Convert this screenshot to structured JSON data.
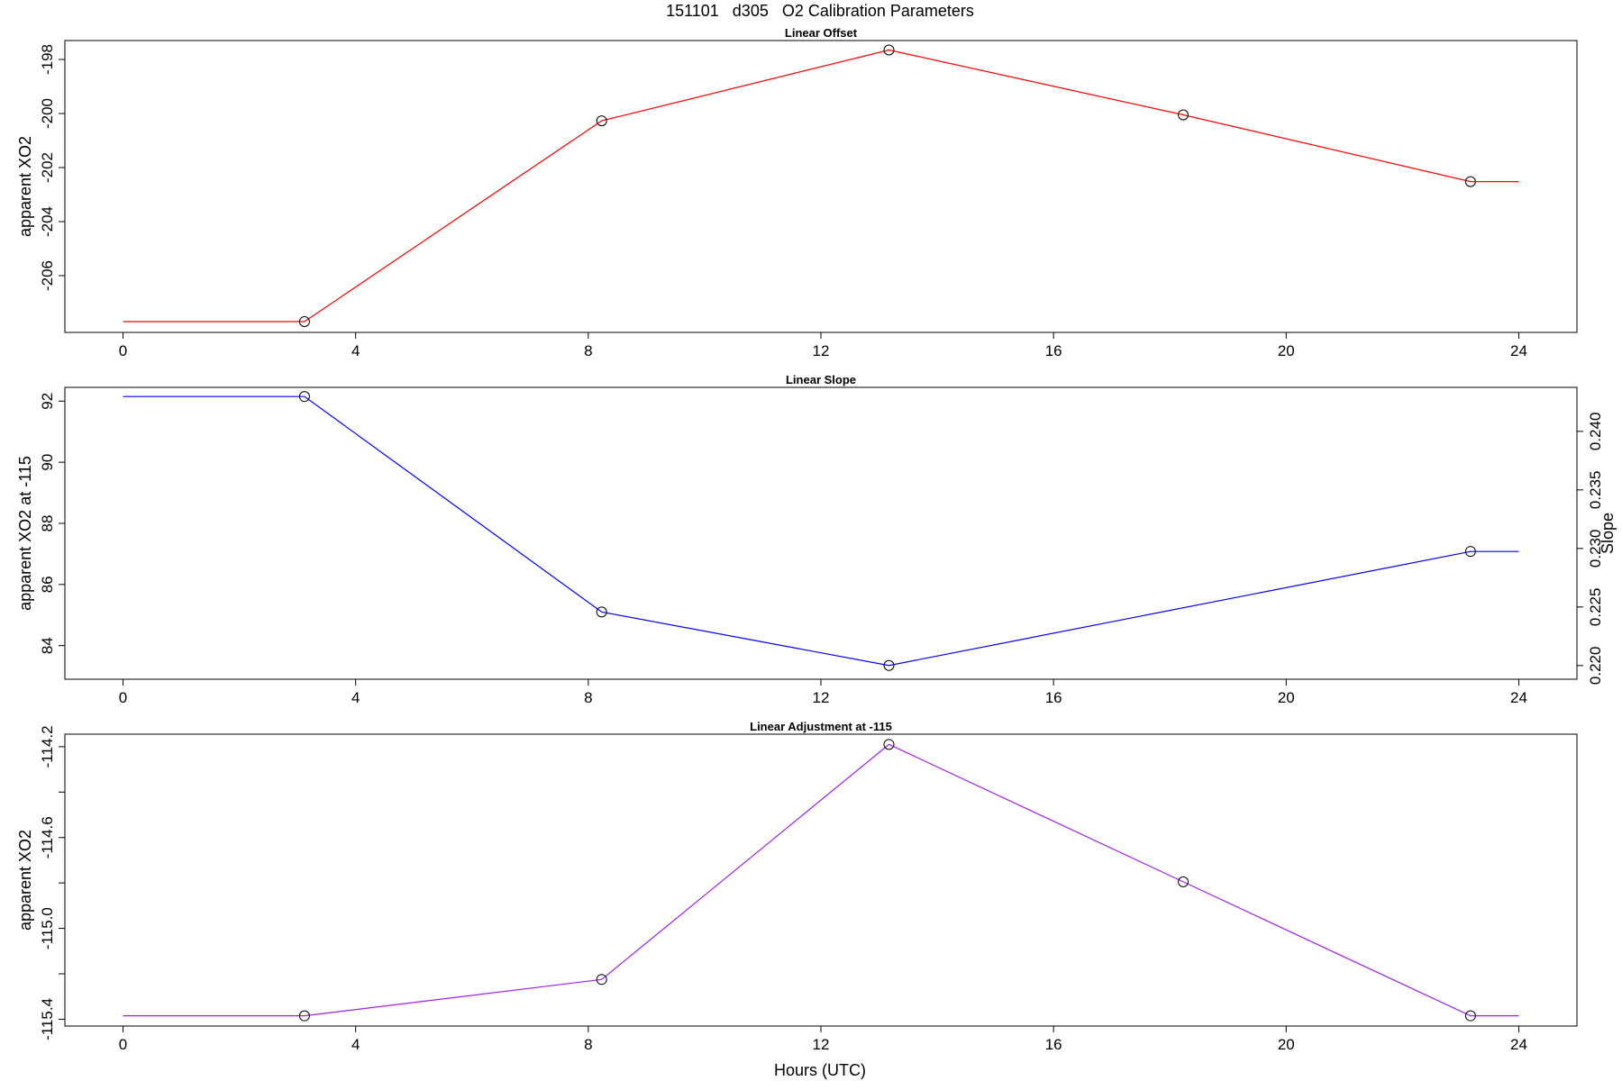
{
  "figure": {
    "title": "151101   d305   O2 Calibration Parameters",
    "xlabel": "Hours (UTC)"
  },
  "chart_data": [
    {
      "type": "line",
      "title": "Linear Offset",
      "xlabel": "",
      "ylabel": "apparent XO2",
      "xlim": [
        -1.0,
        25.0
      ],
      "ylim": [
        -208.1,
        -197.3
      ],
      "xticks": [
        0,
        4,
        8,
        12,
        16,
        20,
        24
      ],
      "xtick_labels": [
        "0",
        "4",
        "8",
        "12",
        "16",
        "20",
        "24"
      ],
      "yticks": [
        -206,
        -204,
        -202,
        -200,
        -198
      ],
      "ytick_labels": [
        "-206",
        "-204",
        "-202",
        "-200",
        "-198"
      ],
      "series": [
        {
          "color": "#ff0000",
          "x": [
            0,
            3.12,
            8.23,
            13.17,
            18.23,
            23.17,
            24
          ],
          "y": [
            -207.7,
            -207.7,
            -200.27,
            -197.65,
            -200.05,
            -202.52,
            -202.52
          ],
          "markers": [
            false,
            true,
            true,
            true,
            true,
            true,
            false
          ]
        }
      ]
    },
    {
      "type": "line",
      "title": "Linear Slope",
      "xlabel": "",
      "ylabel": "apparent XO2 at -115",
      "ylabel_right": "Slope",
      "xlim": [
        -1.0,
        25.0
      ],
      "ylim": [
        82.9,
        92.45
      ],
      "ylim_right": [
        0.21883,
        0.24376
      ],
      "xticks": [
        0,
        4,
        8,
        12,
        16,
        20,
        24
      ],
      "xtick_labels": [
        "0",
        "4",
        "8",
        "12",
        "16",
        "20",
        "24"
      ],
      "yticks": [
        84,
        86,
        88,
        90,
        92
      ],
      "ytick_labels": [
        "84",
        "86",
        "88",
        "90",
        "92"
      ],
      "yticks_right": [
        0.22,
        0.225,
        0.23,
        0.235,
        0.24
      ],
      "ytick_labels_right": [
        "0.220",
        "0.225",
        "0.230",
        "0.235",
        "0.240"
      ],
      "series": [
        {
          "color": "#0000ff",
          "x": [
            0,
            3.12,
            8.23,
            13.17,
            23.17,
            24
          ],
          "y": [
            92.15,
            92.15,
            85.1,
            83.35,
            87.08,
            87.08
          ],
          "markers": [
            false,
            true,
            true,
            true,
            true,
            false
          ]
        }
      ]
    },
    {
      "type": "line",
      "title": "Linear Adjustment at -115",
      "xlabel": "Hours (UTC)",
      "ylabel": "apparent XO2",
      "xlim": [
        -1.0,
        25.0
      ],
      "ylim": [
        -115.43,
        -114.145
      ],
      "xticks": [
        0,
        4,
        8,
        12,
        16,
        20,
        24
      ],
      "xtick_labels": [
        "0",
        "4",
        "8",
        "12",
        "16",
        "20",
        "24"
      ],
      "yticks": [
        -115.4,
        -115.2,
        -115.0,
        -114.8,
        -114.6,
        -114.4,
        -114.2
      ],
      "ytick_labels": [
        "-115.4",
        "",
        "-115.0",
        "",
        "-114.6",
        "",
        "-114.2"
      ],
      "series": [
        {
          "color": "#a020f0",
          "x": [
            0,
            3.12,
            8.23,
            13.17,
            18.23,
            23.17,
            24
          ],
          "y": [
            -115.385,
            -115.385,
            -115.225,
            -114.19,
            -114.795,
            -115.385,
            -115.385
          ],
          "markers": [
            false,
            true,
            true,
            true,
            true,
            true,
            false
          ]
        }
      ]
    }
  ]
}
